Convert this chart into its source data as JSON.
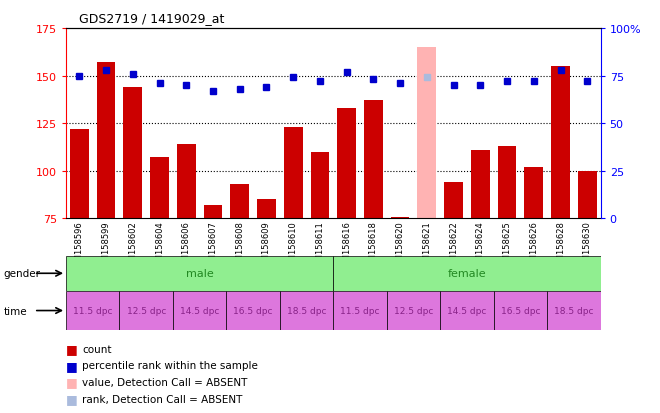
{
  "title": "GDS2719 / 1419029_at",
  "samples": [
    "GSM158596",
    "GSM158599",
    "GSM158602",
    "GSM158604",
    "GSM158606",
    "GSM158607",
    "GSM158608",
    "GSM158609",
    "GSM158610",
    "GSM158611",
    "GSM158616",
    "GSM158618",
    "GSM158620",
    "GSM158621",
    "GSM158622",
    "GSM158624",
    "GSM158625",
    "GSM158626",
    "GSM158628",
    "GSM158630"
  ],
  "bar_values": [
    122,
    157,
    144,
    107,
    114,
    82,
    93,
    85,
    123,
    110,
    133,
    137,
    76,
    165,
    94,
    111,
    113,
    102,
    155,
    100
  ],
  "bar_absent": [
    false,
    false,
    false,
    false,
    false,
    false,
    false,
    false,
    false,
    false,
    false,
    false,
    false,
    true,
    false,
    false,
    false,
    false,
    false,
    false
  ],
  "dot_values": [
    75,
    78,
    76,
    71,
    70,
    67,
    68,
    69,
    74,
    72,
    77,
    73,
    71,
    74,
    70,
    70,
    72,
    72,
    78,
    72
  ],
  "dot_absent": [
    false,
    false,
    false,
    false,
    false,
    false,
    false,
    false,
    false,
    false,
    false,
    false,
    false,
    true,
    false,
    false,
    false,
    false,
    false,
    false
  ],
  "ylim_left": [
    75,
    175
  ],
  "ylim_right": [
    0,
    100
  ],
  "yticks_left": [
    75,
    100,
    125,
    150,
    175
  ],
  "yticks_right": [
    0,
    25,
    50,
    75,
    100
  ],
  "ytick_labels_right": [
    "0",
    "25",
    "50",
    "75",
    "100%"
  ],
  "hlines": [
    100,
    125,
    150
  ],
  "bar_color": "#cc0000",
  "bar_absent_color": "#ffb3b3",
  "dot_color": "#0000cc",
  "dot_absent_color": "#aabbdd",
  "gender_labels": [
    "male",
    "female"
  ],
  "gender_split": 10,
  "gender_color": "#90ee90",
  "gender_text_color": "#228822",
  "time_labels": [
    "11.5 dpc",
    "12.5 dpc",
    "14.5 dpc",
    "16.5 dpc",
    "18.5 dpc",
    "11.5 dpc",
    "12.5 dpc",
    "14.5 dpc",
    "16.5 dpc",
    "18.5 dpc"
  ],
  "time_color": "#dd77dd",
  "time_text_color": "#882288",
  "tick_bg_color": "#d0d0d0",
  "background_color": "#ffffff",
  "legend_items": [
    {
      "label": "count",
      "color": "#cc0000"
    },
    {
      "label": "percentile rank within the sample",
      "color": "#0000cc"
    },
    {
      "label": "value, Detection Call = ABSENT",
      "color": "#ffb3b3"
    },
    {
      "label": "rank, Detection Call = ABSENT",
      "color": "#aabbdd"
    }
  ]
}
